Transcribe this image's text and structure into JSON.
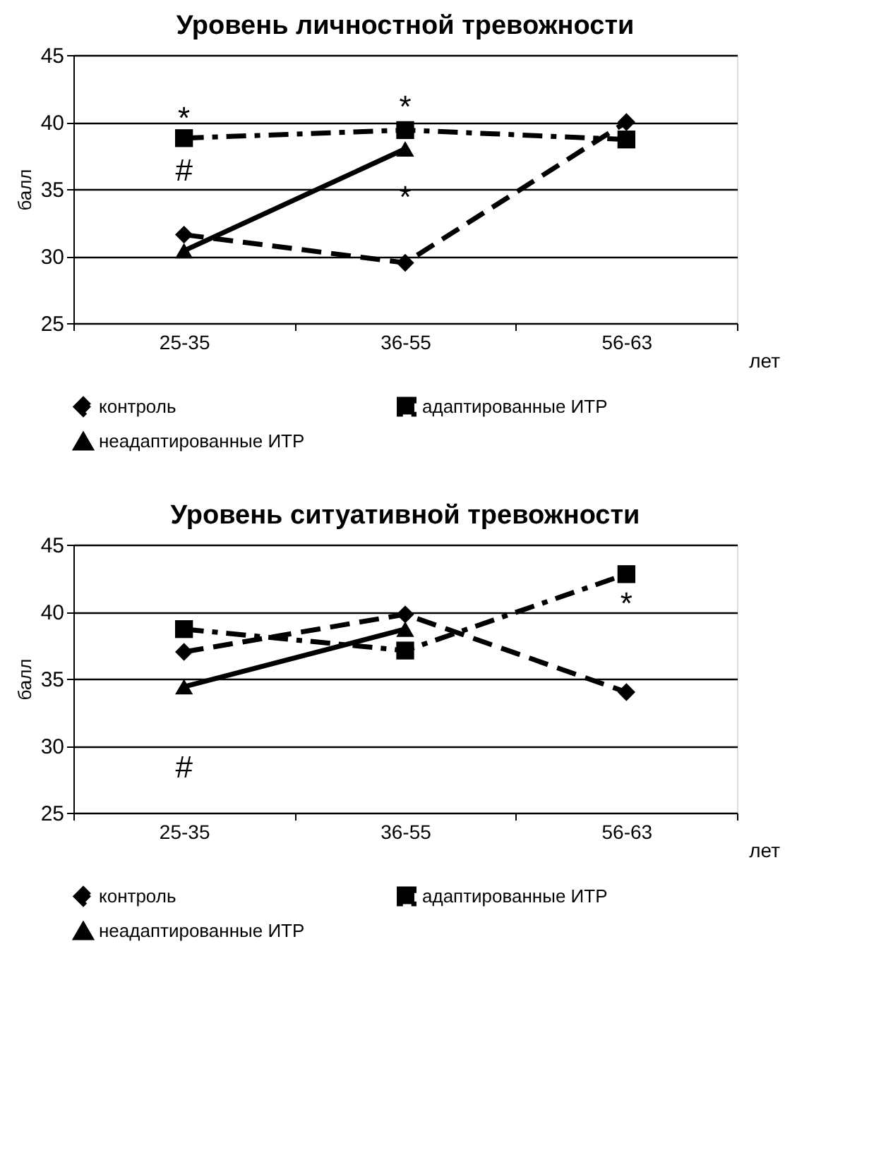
{
  "chart_data": [
    {
      "type": "line",
      "title": "Уровень личностной тревожности",
      "ylabel": "балл",
      "xlabel": "лет",
      "categories": [
        "25-35",
        "36-55",
        "56-63"
      ],
      "ylim": [
        25,
        45
      ],
      "yticks": [
        25,
        30,
        35,
        40,
        45
      ],
      "grid": "y",
      "legend": "bottom",
      "series": [
        {
          "name": "контроль",
          "color": "#000000",
          "marker": "diamond",
          "line_style": "dashed",
          "values": [
            31.6,
            29.5,
            40.0
          ]
        },
        {
          "name": "адаптированные ИТР",
          "color": "#000000",
          "marker": "square",
          "line_style": "dashdot",
          "values": [
            38.8,
            39.4,
            38.7
          ]
        },
        {
          "name": "неадаптированные ИТР",
          "color": "#000000",
          "marker": "triangle",
          "line_style": "solid",
          "values": [
            30.4,
            38.0,
            null
          ]
        }
      ],
      "annotations": [
        "*",
        "#",
        "*",
        "*"
      ]
    },
    {
      "type": "line",
      "title": "Уровень ситуативной тревожности",
      "ylabel": "балл",
      "xlabel": "лет",
      "categories": [
        "25-35",
        "36-55",
        "56-63"
      ],
      "ylim": [
        25,
        45
      ],
      "yticks": [
        25,
        30,
        35,
        40,
        45
      ],
      "grid": "y",
      "legend": "bottom",
      "series": [
        {
          "name": "контроль",
          "color": "#000000",
          "marker": "diamond",
          "line_style": "dashed",
          "values": [
            37.0,
            39.8,
            34.0
          ]
        },
        {
          "name": "адаптированные ИТР",
          "color": "#000000",
          "marker": "square",
          "line_style": "dashdot",
          "values": [
            38.7,
            37.1,
            42.8
          ]
        },
        {
          "name": "неадаптированные ИТР",
          "color": "#000000",
          "marker": "triangle",
          "line_style": "solid",
          "values": [
            34.4,
            38.7,
            null
          ]
        }
      ],
      "annotations": [
        "#",
        "*"
      ]
    }
  ]
}
